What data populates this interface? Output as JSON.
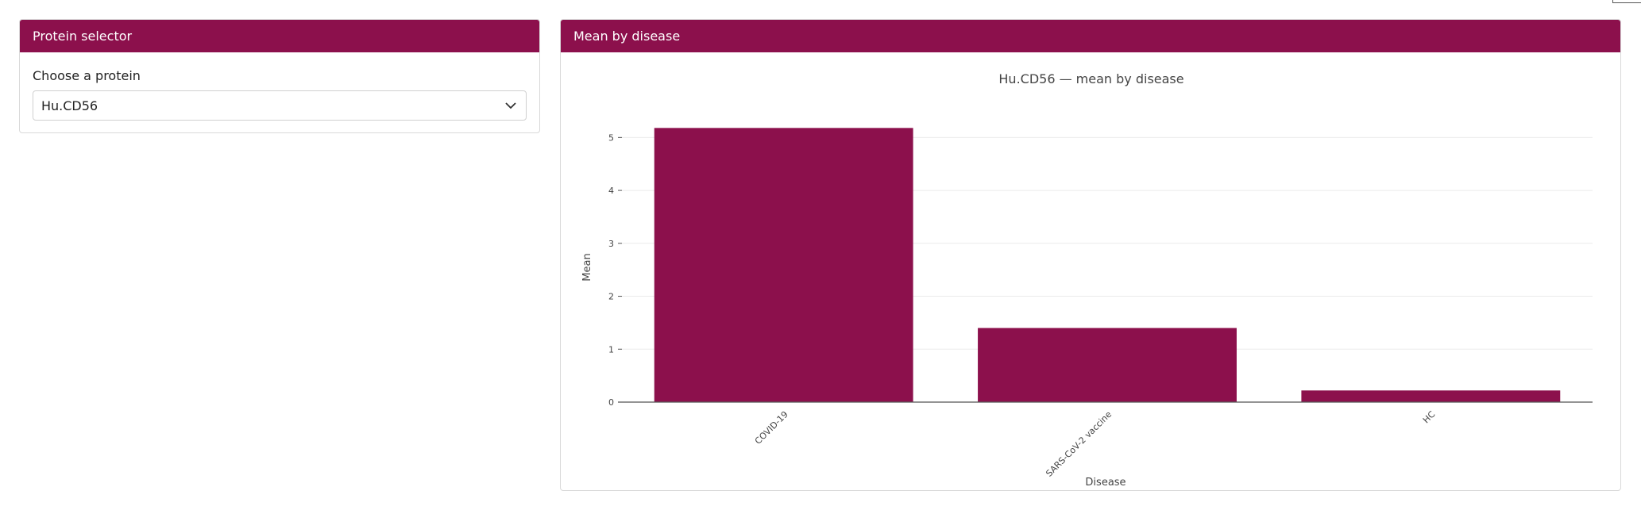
{
  "selector_card": {
    "title": "Protein selector",
    "label": "Choose a protein",
    "selected": "Hu.CD56"
  },
  "chart_card": {
    "title": "Mean by disease"
  },
  "colors": {
    "brand": "#8c104c",
    "bar": "#8c104c"
  },
  "icons": {
    "dropdown": "chevron-down-icon"
  },
  "chart_data": {
    "type": "bar",
    "title": "Hu.CD56 — mean by disease",
    "xlabel": "Disease",
    "ylabel": "Mean",
    "categories": [
      "COVID-19",
      "SARS-CoV-2 vaccine",
      "HC"
    ],
    "values": [
      5.18,
      1.4,
      0.22
    ],
    "ylim": [
      0,
      5.2
    ],
    "yticks": [
      0,
      1,
      2,
      3,
      4,
      5
    ],
    "grid": true,
    "legend": "none"
  }
}
